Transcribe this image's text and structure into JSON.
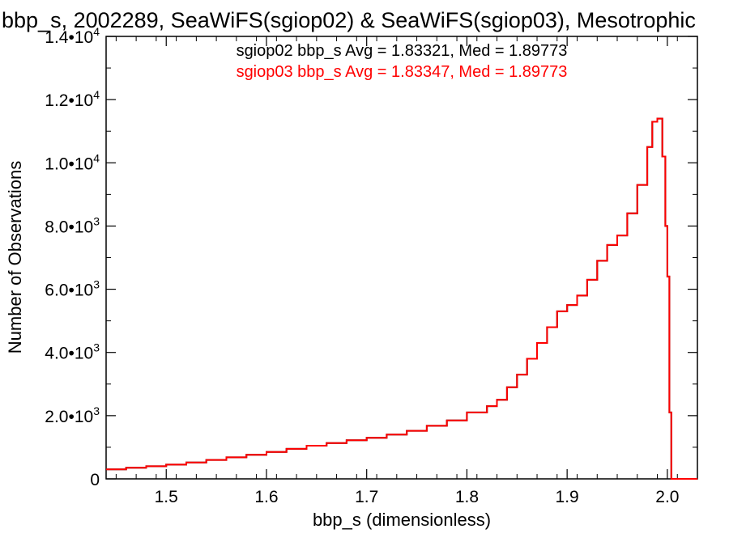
{
  "chart_data": {
    "type": "line",
    "title": "bbp_s, 2002289, SeaWiFS(sgiop02) & SeaWiFS(sgiop03), Mesotrophic",
    "xlabel": "bbp_s (dimensionless)",
    "ylabel": "Number of Observations",
    "xlim": [
      1.44,
      2.03
    ],
    "ylim": [
      0,
      14000
    ],
    "x_ticks": [
      {
        "value": 1.5,
        "label": "1.5"
      },
      {
        "value": 1.6,
        "label": "1.6"
      },
      {
        "value": 1.7,
        "label": "1.7"
      },
      {
        "value": 1.8,
        "label": "1.8"
      },
      {
        "value": 1.9,
        "label": "1.9"
      },
      {
        "value": 2.0,
        "label": "2.0"
      }
    ],
    "y_ticks": [
      {
        "value": 0,
        "label": "0",
        "exp": ""
      },
      {
        "value": 2000,
        "label": "2.0•10",
        "exp": "3"
      },
      {
        "value": 4000,
        "label": "4.0•10",
        "exp": "3"
      },
      {
        "value": 6000,
        "label": "6.0•10",
        "exp": "3"
      },
      {
        "value": 8000,
        "label": "8.0•10",
        "exp": "3"
      },
      {
        "value": 10000,
        "label": "1.0•10",
        "exp": "4"
      },
      {
        "value": 12000,
        "label": "1.2•10",
        "exp": "4"
      },
      {
        "value": 14000,
        "label": "1.4•10",
        "exp": "4"
      }
    ],
    "annotations": [
      {
        "text": "sgiop02 bbp_s Avg = 1.83321, Med = 1.89773",
        "color": "#000000"
      },
      {
        "text": "sgiop03 bbp_s Avg = 1.83347, Med = 1.89773",
        "color": "#ff0000"
      }
    ],
    "series": [
      {
        "color": "#000000",
        "x": [
          1.44,
          1.46,
          1.48,
          1.5,
          1.52,
          1.54,
          1.56,
          1.58,
          1.6,
          1.62,
          1.64,
          1.66,
          1.68,
          1.7,
          1.72,
          1.74,
          1.76,
          1.78,
          1.8,
          1.82,
          1.83,
          1.84,
          1.85,
          1.86,
          1.87,
          1.88,
          1.89,
          1.9,
          1.91,
          1.92,
          1.93,
          1.94,
          1.95,
          1.96,
          1.97,
          1.98,
          1.985,
          1.99,
          1.995,
          1.998,
          2.0,
          2.002,
          2.004,
          2.006,
          2.03
        ],
        "y": [
          300,
          350,
          400,
          450,
          520,
          600,
          680,
          760,
          850,
          950,
          1050,
          1130,
          1220,
          1300,
          1400,
          1520,
          1680,
          1850,
          2100,
          2300,
          2500,
          2900,
          3300,
          3800,
          4300,
          4800,
          5300,
          5500,
          5800,
          6300,
          6900,
          7400,
          7700,
          8400,
          9300,
          10500,
          11300,
          11400,
          10200,
          8000,
          6400,
          2100,
          0,
          0,
          0
        ]
      },
      {
        "color": "#ff0000",
        "x": [
          1.44,
          1.46,
          1.48,
          1.5,
          1.52,
          1.54,
          1.56,
          1.58,
          1.6,
          1.62,
          1.64,
          1.66,
          1.68,
          1.7,
          1.72,
          1.74,
          1.76,
          1.78,
          1.8,
          1.82,
          1.83,
          1.84,
          1.85,
          1.86,
          1.87,
          1.88,
          1.89,
          1.9,
          1.91,
          1.92,
          1.93,
          1.94,
          1.95,
          1.96,
          1.97,
          1.98,
          1.985,
          1.99,
          1.995,
          1.998,
          2.0,
          2.002,
          2.004,
          2.006,
          2.03
        ],
        "y": [
          300,
          350,
          400,
          450,
          520,
          600,
          680,
          760,
          850,
          950,
          1050,
          1130,
          1220,
          1300,
          1400,
          1520,
          1680,
          1850,
          2100,
          2300,
          2500,
          2900,
          3300,
          3800,
          4300,
          4800,
          5300,
          5500,
          5800,
          6300,
          6900,
          7400,
          7700,
          8400,
          9300,
          10500,
          11300,
          11400,
          10200,
          8000,
          6400,
          2100,
          0,
          0,
          0
        ]
      }
    ],
    "grid": false,
    "legend": "none"
  }
}
